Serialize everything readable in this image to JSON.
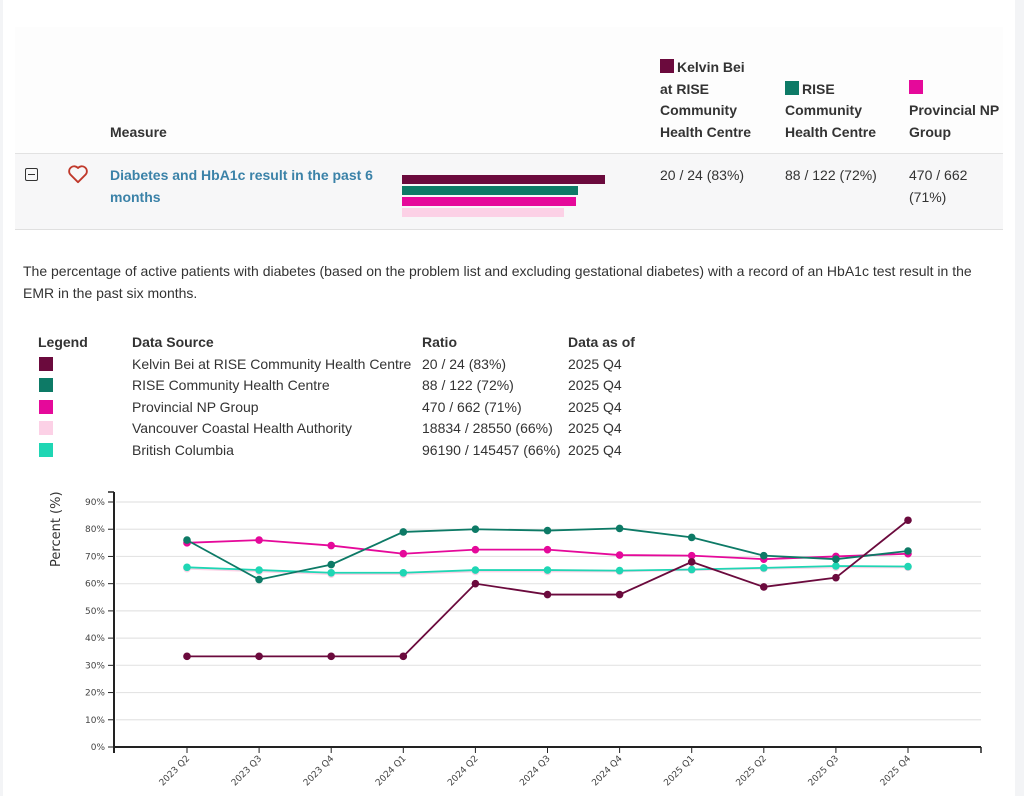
{
  "table": {
    "header": {
      "measure_label": "Measure",
      "columns": [
        {
          "label": "Kelvin Bei at RISE Community Health Centre",
          "color": "#6b0a3d"
        },
        {
          "label": "RISE Community Health Centre",
          "color": "#0d7a66"
        },
        {
          "label": "Provincial NP Group",
          "color": "#e5099a"
        }
      ]
    },
    "row": {
      "measure": "Diabetes and HbA1c result in the past 6 months",
      "values": [
        "20 / 24 (83%)",
        "88 / 122 (72%)",
        "470 / 662 (71%)"
      ],
      "bars": [
        {
          "name": "Kelvin Bei at RISE Community Health Centre",
          "percent": 83,
          "color": "#6b0a3d"
        },
        {
          "name": "RISE Community Health Centre",
          "percent": 72,
          "color": "#0d7a66"
        },
        {
          "name": "Provincial NP Group",
          "percent": 71,
          "color": "#e5099a"
        },
        {
          "name": "Vancouver Coastal Health Authority",
          "percent": 66,
          "color": "#fcd1e6"
        }
      ]
    }
  },
  "description": "The percentage of active patients with diabetes (based on the problem list and excluding gestational diabetes) with a record of an HbA1c test result in the EMR in the past six months.",
  "legend": {
    "headers": [
      "Legend",
      "Data Source",
      "Ratio",
      "Data as of"
    ],
    "rows": [
      {
        "color": "#6b0a3d",
        "source": "Kelvin Bei at RISE Community Health Centre",
        "ratio": "20 / 24 (83%)",
        "as_of": "2025 Q4"
      },
      {
        "color": "#0d7a66",
        "source": "RISE Community Health Centre",
        "ratio": "88 / 122 (72%)",
        "as_of": "2025 Q4"
      },
      {
        "color": "#e5099a",
        "source": "Provincial NP Group",
        "ratio": "470 / 662 (71%)",
        "as_of": "2025 Q4"
      },
      {
        "color": "#fcd1e6",
        "source": "Vancouver Coastal Health Authority",
        "ratio": "18834 / 28550 (66%)",
        "as_of": "2025 Q4"
      },
      {
        "color": "#1fd6b4",
        "source": "British Columbia",
        "ratio": "96190 / 145457 (66%)",
        "as_of": "2025 Q4"
      }
    ]
  },
  "chart_data": {
    "type": "line",
    "title": "",
    "xlabel": "",
    "ylabel": "Percent (%)",
    "ylim": [
      0,
      90
    ],
    "yticks": [
      0,
      10,
      20,
      30,
      40,
      50,
      60,
      70,
      80,
      90
    ],
    "ytick_labels": [
      "0%",
      "10%",
      "20%",
      "30%",
      "40%",
      "50%",
      "60%",
      "70%",
      "80%",
      "90%"
    ],
    "grid": true,
    "categories": [
      "2023 Q2",
      "2023 Q3",
      "2023 Q4",
      "2024 Q1",
      "2024 Q2",
      "2024 Q3",
      "2024 Q4",
      "2025 Q1",
      "2025 Q2",
      "2025 Q3",
      "2025 Q4"
    ],
    "series": [
      {
        "name": "Vancouver Coastal Health Authority",
        "color": "#fcd1e6",
        "values": [
          65.5,
          64.5,
          63.5,
          63.5,
          64.5,
          64.5,
          64.5,
          65,
          65.5,
          66,
          66
        ]
      },
      {
        "name": "British Columbia",
        "color": "#1fd6b4",
        "values": [
          66,
          65,
          64,
          64,
          65,
          65,
          64.8,
          65.2,
          65.8,
          66.5,
          66.3
        ]
      },
      {
        "name": "Provincial NP Group",
        "color": "#e5099a",
        "values": [
          75,
          76,
          74,
          71,
          72.5,
          72.5,
          70.5,
          70.3,
          69,
          70,
          71
        ]
      },
      {
        "name": "RISE Community Health Centre",
        "color": "#0d7a66",
        "values": [
          76,
          61.5,
          67,
          79,
          80,
          79.5,
          80.3,
          77,
          70.3,
          69,
          72
        ]
      },
      {
        "name": "Kelvin Bei at RISE Community Health Centre",
        "color": "#6b0a3d",
        "values": [
          33.3,
          33.3,
          33.3,
          33.3,
          60,
          56,
          56,
          68,
          58.8,
          62.2,
          83.3
        ]
      }
    ]
  }
}
